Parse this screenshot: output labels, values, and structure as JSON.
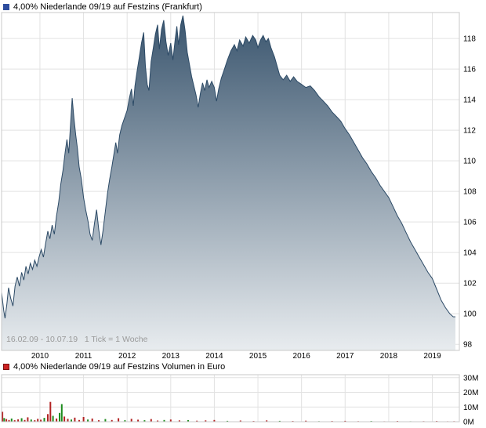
{
  "price_chart": {
    "title": "4,00% Niederlande 09/19 auf Festzins (Frankfurt)",
    "range_label": "16.02.09 - 10.07.19   1 Tick = 1 Woche",
    "legend_color": "#2e4d9e"
  },
  "volume_chart": {
    "title": "4,00% Niederlande 09/19 auf Festzins Volumen in Euro",
    "legend_color": "#cc2222",
    "legend_border": "#7a1010"
  },
  "colors": {
    "line": "#2c4a66",
    "fill_top": "#3a556e",
    "fill_bottom": "#e8ecef",
    "grid": "#e2e2e2",
    "frame": "#c8c8c8",
    "bar_red": "#b22222",
    "bar_green": "#1e8c1e",
    "range_text": "#9a9a9a",
    "axis_text": "#000000"
  },
  "chart_data": [
    {
      "type": "area",
      "title": "4,00% Niederlande 09/19 auf Festzins (Frankfurt)",
      "x_unit": "decimal_year",
      "xlim": [
        2009.12,
        2019.62
      ],
      "ylim": [
        97.6,
        119.7
      ],
      "xticks": [
        2010,
        2011,
        2012,
        2013,
        2014,
        2015,
        2016,
        2017,
        2018,
        2019
      ],
      "yticks": [
        98,
        100,
        102,
        104,
        106,
        108,
        110,
        112,
        114,
        116,
        118
      ],
      "legend_position": "top-left",
      "grid": true,
      "points": [
        [
          2009.12,
          101.4
        ],
        [
          2009.17,
          100.2
        ],
        [
          2009.2,
          99.7
        ],
        [
          2009.24,
          100.6
        ],
        [
          2009.28,
          101.7
        ],
        [
          2009.33,
          101.0
        ],
        [
          2009.38,
          100.5
        ],
        [
          2009.43,
          101.8
        ],
        [
          2009.48,
          102.4
        ],
        [
          2009.53,
          101.8
        ],
        [
          2009.58,
          102.7
        ],
        [
          2009.63,
          102.2
        ],
        [
          2009.68,
          103.1
        ],
        [
          2009.73,
          102.6
        ],
        [
          2009.78,
          103.3
        ],
        [
          2009.83,
          102.9
        ],
        [
          2009.88,
          103.5
        ],
        [
          2009.93,
          103.1
        ],
        [
          2009.98,
          103.7
        ],
        [
          2010.03,
          104.2
        ],
        [
          2010.08,
          103.7
        ],
        [
          2010.13,
          104.6
        ],
        [
          2010.18,
          105.4
        ],
        [
          2010.23,
          104.9
        ],
        [
          2010.28,
          105.8
        ],
        [
          2010.33,
          105.2
        ],
        [
          2010.38,
          106.4
        ],
        [
          2010.43,
          107.3
        ],
        [
          2010.48,
          108.5
        ],
        [
          2010.53,
          109.4
        ],
        [
          2010.58,
          110.6
        ],
        [
          2010.62,
          111.4
        ],
        [
          2010.66,
          110.5
        ],
        [
          2010.7,
          112.3
        ],
        [
          2010.74,
          114.1
        ],
        [
          2010.78,
          112.8
        ],
        [
          2010.82,
          111.7
        ],
        [
          2010.86,
          110.8
        ],
        [
          2010.9,
          109.6
        ],
        [
          2010.95,
          108.8
        ],
        [
          2011.0,
          107.6
        ],
        [
          2011.05,
          106.8
        ],
        [
          2011.1,
          106.1
        ],
        [
          2011.15,
          105.2
        ],
        [
          2011.2,
          104.8
        ],
        [
          2011.25,
          105.9
        ],
        [
          2011.3,
          106.8
        ],
        [
          2011.35,
          105.5
        ],
        [
          2011.4,
          104.5
        ],
        [
          2011.45,
          105.5
        ],
        [
          2011.5,
          106.7
        ],
        [
          2011.55,
          107.9
        ],
        [
          2011.6,
          108.8
        ],
        [
          2011.65,
          109.6
        ],
        [
          2011.7,
          110.5
        ],
        [
          2011.74,
          111.2
        ],
        [
          2011.78,
          110.5
        ],
        [
          2011.83,
          111.7
        ],
        [
          2011.88,
          112.3
        ],
        [
          2011.94,
          112.8
        ],
        [
          2012.0,
          113.3
        ],
        [
          2012.05,
          114.1
        ],
        [
          2012.1,
          114.7
        ],
        [
          2012.14,
          113.6
        ],
        [
          2012.18,
          114.9
        ],
        [
          2012.23,
          115.9
        ],
        [
          2012.28,
          116.8
        ],
        [
          2012.33,
          117.7
        ],
        [
          2012.38,
          118.4
        ],
        [
          2012.42,
          116.2
        ],
        [
          2012.46,
          115.0
        ],
        [
          2012.5,
          114.6
        ],
        [
          2012.55,
          116.5
        ],
        [
          2012.6,
          117.4
        ],
        [
          2012.65,
          118.3
        ],
        [
          2012.7,
          118.9
        ],
        [
          2012.74,
          117.3
        ],
        [
          2012.79,
          118.6
        ],
        [
          2012.84,
          119.2
        ],
        [
          2012.89,
          117.8
        ],
        [
          2012.94,
          116.9
        ],
        [
          2013.0,
          117.7
        ],
        [
          2013.05,
          116.6
        ],
        [
          2013.1,
          117.9
        ],
        [
          2013.14,
          118.8
        ],
        [
          2013.18,
          117.6
        ],
        [
          2013.23,
          118.9
        ],
        [
          2013.28,
          119.5
        ],
        [
          2013.33,
          118.5
        ],
        [
          2013.38,
          117.1
        ],
        [
          2013.43,
          116.3
        ],
        [
          2013.48,
          115.5
        ],
        [
          2013.53,
          114.9
        ],
        [
          2013.58,
          114.3
        ],
        [
          2013.63,
          113.5
        ],
        [
          2013.68,
          114.4
        ],
        [
          2013.73,
          115.1
        ],
        [
          2013.78,
          114.6
        ],
        [
          2013.83,
          115.3
        ],
        [
          2013.88,
          114.8
        ],
        [
          2013.94,
          115.2
        ],
        [
          2014.0,
          114.8
        ],
        [
          2014.05,
          113.9
        ],
        [
          2014.1,
          114.7
        ],
        [
          2014.16,
          115.4
        ],
        [
          2014.22,
          115.9
        ],
        [
          2014.3,
          116.6
        ],
        [
          2014.38,
          117.2
        ],
        [
          2014.46,
          117.6
        ],
        [
          2014.52,
          117.2
        ],
        [
          2014.58,
          117.9
        ],
        [
          2014.66,
          117.5
        ],
        [
          2014.72,
          118.1
        ],
        [
          2014.8,
          117.7
        ],
        [
          2014.88,
          118.2
        ],
        [
          2014.95,
          117.9
        ],
        [
          2015.0,
          117.4
        ],
        [
          2015.06,
          117.9
        ],
        [
          2015.12,
          118.2
        ],
        [
          2015.18,
          117.8
        ],
        [
          2015.24,
          118.0
        ],
        [
          2015.3,
          117.4
        ],
        [
          2015.38,
          116.8
        ],
        [
          2015.44,
          116.2
        ],
        [
          2015.5,
          115.6
        ],
        [
          2015.58,
          115.3
        ],
        [
          2015.66,
          115.6
        ],
        [
          2015.74,
          115.2
        ],
        [
          2015.82,
          115.5
        ],
        [
          2015.9,
          115.2
        ],
        [
          2016.0,
          115.0
        ],
        [
          2016.1,
          114.8
        ],
        [
          2016.2,
          114.9
        ],
        [
          2016.3,
          114.6
        ],
        [
          2016.4,
          114.2
        ],
        [
          2016.5,
          113.9
        ],
        [
          2016.6,
          113.6
        ],
        [
          2016.7,
          113.2
        ],
        [
          2016.8,
          112.9
        ],
        [
          2016.9,
          112.6
        ],
        [
          2017.0,
          112.1
        ],
        [
          2017.1,
          111.7
        ],
        [
          2017.2,
          111.2
        ],
        [
          2017.3,
          110.7
        ],
        [
          2017.4,
          110.2
        ],
        [
          2017.5,
          109.8
        ],
        [
          2017.6,
          109.3
        ],
        [
          2017.7,
          108.9
        ],
        [
          2017.8,
          108.4
        ],
        [
          2017.9,
          108.0
        ],
        [
          2018.0,
          107.6
        ],
        [
          2018.1,
          107.0
        ],
        [
          2018.2,
          106.4
        ],
        [
          2018.3,
          105.9
        ],
        [
          2018.4,
          105.3
        ],
        [
          2018.5,
          104.7
        ],
        [
          2018.6,
          104.2
        ],
        [
          2018.7,
          103.7
        ],
        [
          2018.8,
          103.2
        ],
        [
          2018.9,
          102.7
        ],
        [
          2019.0,
          102.3
        ],
        [
          2019.1,
          101.6
        ],
        [
          2019.2,
          100.9
        ],
        [
          2019.3,
          100.4
        ],
        [
          2019.4,
          100.0
        ],
        [
          2019.48,
          99.8
        ],
        [
          2019.53,
          99.8
        ]
      ]
    },
    {
      "type": "bar",
      "title": "4,00% Niederlande 09/19 auf Festzins Volumen in Euro",
      "x_unit": "decimal_year",
      "xlim": [
        2009.12,
        2019.62
      ],
      "ylim": [
        0,
        32
      ],
      "yticks": [
        0,
        10,
        20,
        30
      ],
      "ytick_labels": [
        "0M",
        "10M",
        "20M",
        "30M"
      ],
      "xticks": [
        2010,
        2011,
        2012,
        2013,
        2014,
        2015,
        2016,
        2017,
        2018,
        2019
      ],
      "grid": true,
      "bars": [
        {
          "x": 2009.14,
          "v": 6.8,
          "c": "red"
        },
        {
          "x": 2009.18,
          "v": 2.5,
          "c": "green"
        },
        {
          "x": 2009.23,
          "v": 1.8,
          "c": "red"
        },
        {
          "x": 2009.29,
          "v": 1.2,
          "c": "red"
        },
        {
          "x": 2009.35,
          "v": 2.2,
          "c": "green"
        },
        {
          "x": 2009.42,
          "v": 1.0,
          "c": "red"
        },
        {
          "x": 2009.5,
          "v": 1.6,
          "c": "red"
        },
        {
          "x": 2009.58,
          "v": 2.4,
          "c": "green"
        },
        {
          "x": 2009.65,
          "v": 1.2,
          "c": "red"
        },
        {
          "x": 2009.72,
          "v": 3.0,
          "c": "red"
        },
        {
          "x": 2009.8,
          "v": 1.5,
          "c": "green"
        },
        {
          "x": 2009.88,
          "v": 1.0,
          "c": "red"
        },
        {
          "x": 2009.95,
          "v": 2.0,
          "c": "red"
        },
        {
          "x": 2010.02,
          "v": 1.4,
          "c": "red"
        },
        {
          "x": 2010.1,
          "v": 2.6,
          "c": "green"
        },
        {
          "x": 2010.18,
          "v": 5.2,
          "c": "red"
        },
        {
          "x": 2010.24,
          "v": 13.5,
          "c": "red"
        },
        {
          "x": 2010.3,
          "v": 4.0,
          "c": "green"
        },
        {
          "x": 2010.38,
          "v": 2.2,
          "c": "red"
        },
        {
          "x": 2010.45,
          "v": 6.0,
          "c": "green"
        },
        {
          "x": 2010.5,
          "v": 12.0,
          "c": "green"
        },
        {
          "x": 2010.56,
          "v": 3.5,
          "c": "red"
        },
        {
          "x": 2010.64,
          "v": 2.0,
          "c": "red"
        },
        {
          "x": 2010.72,
          "v": 1.5,
          "c": "green"
        },
        {
          "x": 2010.8,
          "v": 2.8,
          "c": "red"
        },
        {
          "x": 2010.9,
          "v": 1.2,
          "c": "red"
        },
        {
          "x": 2011.0,
          "v": 3.2,
          "c": "red"
        },
        {
          "x": 2011.1,
          "v": 1.5,
          "c": "green"
        },
        {
          "x": 2011.2,
          "v": 2.2,
          "c": "red"
        },
        {
          "x": 2011.35,
          "v": 1.0,
          "c": "red"
        },
        {
          "x": 2011.5,
          "v": 1.8,
          "c": "green"
        },
        {
          "x": 2011.65,
          "v": 1.2,
          "c": "red"
        },
        {
          "x": 2011.8,
          "v": 2.4,
          "c": "red"
        },
        {
          "x": 2011.95,
          "v": 1.0,
          "c": "green"
        },
        {
          "x": 2012.1,
          "v": 2.0,
          "c": "red"
        },
        {
          "x": 2012.25,
          "v": 1.4,
          "c": "red"
        },
        {
          "x": 2012.4,
          "v": 1.0,
          "c": "green"
        },
        {
          "x": 2012.55,
          "v": 1.8,
          "c": "red"
        },
        {
          "x": 2012.7,
          "v": 0.8,
          "c": "red"
        },
        {
          "x": 2012.85,
          "v": 1.2,
          "c": "green"
        },
        {
          "x": 2013.0,
          "v": 1.5,
          "c": "red"
        },
        {
          "x": 2013.2,
          "v": 0.9,
          "c": "red"
        },
        {
          "x": 2013.4,
          "v": 1.1,
          "c": "green"
        },
        {
          "x": 2013.6,
          "v": 0.7,
          "c": "red"
        },
        {
          "x": 2013.8,
          "v": 0.9,
          "c": "red"
        },
        {
          "x": 2014.0,
          "v": 1.2,
          "c": "red"
        },
        {
          "x": 2014.3,
          "v": 0.6,
          "c": "green"
        },
        {
          "x": 2014.6,
          "v": 0.8,
          "c": "red"
        },
        {
          "x": 2014.9,
          "v": 0.5,
          "c": "red"
        },
        {
          "x": 2015.2,
          "v": 0.9,
          "c": "red"
        },
        {
          "x": 2015.5,
          "v": 0.6,
          "c": "green"
        },
        {
          "x": 2015.8,
          "v": 0.5,
          "c": "red"
        },
        {
          "x": 2016.1,
          "v": 0.7,
          "c": "red"
        },
        {
          "x": 2016.4,
          "v": 0.4,
          "c": "green"
        },
        {
          "x": 2016.7,
          "v": 0.5,
          "c": "red"
        },
        {
          "x": 2017.0,
          "v": 0.6,
          "c": "red"
        },
        {
          "x": 2017.3,
          "v": 0.4,
          "c": "red"
        },
        {
          "x": 2017.6,
          "v": 0.5,
          "c": "green"
        },
        {
          "x": 2017.9,
          "v": 0.3,
          "c": "red"
        },
        {
          "x": 2018.2,
          "v": 0.5,
          "c": "red"
        },
        {
          "x": 2018.5,
          "v": 0.3,
          "c": "green"
        },
        {
          "x": 2018.8,
          "v": 0.4,
          "c": "red"
        },
        {
          "x": 2019.1,
          "v": 0.5,
          "c": "red"
        },
        {
          "x": 2019.35,
          "v": 0.3,
          "c": "red"
        },
        {
          "x": 2019.5,
          "v": 0.4,
          "c": "red"
        }
      ]
    }
  ]
}
